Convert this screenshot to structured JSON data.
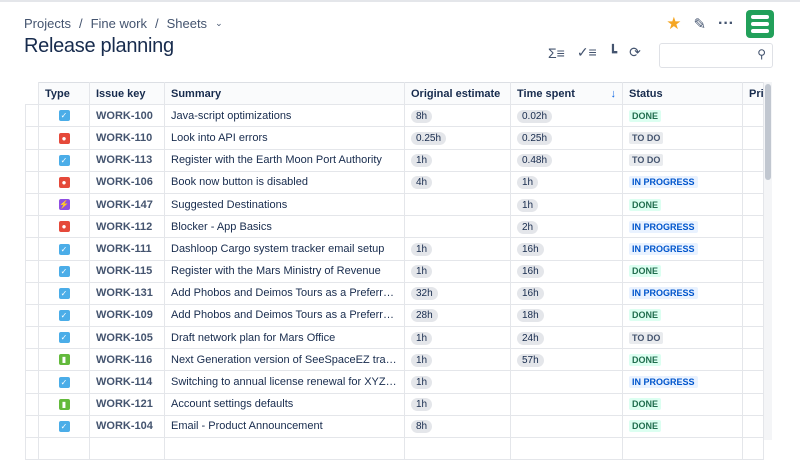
{
  "breadcrumb": [
    "Projects",
    "Fine work",
    "Sheets"
  ],
  "page_title": "Release planning",
  "colors": {
    "done_bg": "#dcfff1",
    "done_fg": "#216e4e",
    "todo_bg": "#e9ebee",
    "todo_fg": "#44546f",
    "progress_bg": "#e9f2ff",
    "progress_fg": "#0055cc",
    "task": "#4bade8",
    "bug": "#e5493a",
    "epic": "#904ee2",
    "story": "#63ba3c"
  },
  "search": {
    "placeholder": ""
  },
  "columns": [
    "Type",
    "Issue key",
    "Summary",
    "Original estimate",
    "Time spent",
    "Status",
    "Pri"
  ],
  "rows": [
    {
      "type": "task",
      "key": "WORK-100",
      "summary": "Java-script optimizations",
      "est": "8h",
      "spent": "0.02h",
      "status": "DONE"
    },
    {
      "type": "bug",
      "key": "WORK-110",
      "summary": "Look into API errors",
      "est": "0.25h",
      "spent": "0.25h",
      "status": "TO DO"
    },
    {
      "type": "task",
      "key": "WORK-113",
      "summary": "Register with the Earth Moon Port Authority",
      "est": "1h",
      "spent": "0.48h",
      "status": "TO DO"
    },
    {
      "type": "bug",
      "key": "WORK-106",
      "summary": "Book now button is disabled",
      "est": "4h",
      "spent": "1h",
      "status": "IN PROGRESS"
    },
    {
      "type": "epic",
      "key": "WORK-147",
      "summary": "Suggested Destinations",
      "est": "",
      "spent": "1h",
      "status": "DONE"
    },
    {
      "type": "bug",
      "key": "WORK-112",
      "summary": "Blocker - App Basics",
      "est": "",
      "spent": "2h",
      "status": "IN PROGRESS"
    },
    {
      "type": "task",
      "key": "WORK-111",
      "summary": "Dashloop Cargo system tracker email setup",
      "est": "1h",
      "spent": "16h",
      "status": "IN PROGRESS"
    },
    {
      "type": "task",
      "key": "WORK-115",
      "summary": "Register with the Mars Ministry of Revenue",
      "est": "1h",
      "spent": "16h",
      "status": "DONE"
    },
    {
      "type": "task",
      "key": "WORK-131",
      "summary": "Add Phobos and Deimos Tours as a Preferred Partner",
      "est": "32h",
      "spent": "16h",
      "status": "IN PROGRESS"
    },
    {
      "type": "task",
      "key": "WORK-109",
      "summary": "Add Phobos and Deimos Tours as a Preferred Vendor",
      "est": "28h",
      "spent": "18h",
      "status": "DONE"
    },
    {
      "type": "task",
      "key": "WORK-105",
      "summary": "Draft network plan for Mars Office",
      "est": "1h",
      "spent": "24h",
      "status": "TO DO"
    },
    {
      "type": "story",
      "key": "WORK-116",
      "summary": "Next Generation version of SeeSpaceEZ travel app",
      "est": "1h",
      "spent": "57h",
      "status": "DONE"
    },
    {
      "type": "task",
      "key": "WORK-114",
      "summary": "Switching to annual license renewal for XYZ group",
      "est": "1h",
      "spent": "",
      "status": "IN PROGRESS"
    },
    {
      "type": "story",
      "key": "WORK-121",
      "summary": "Account settings defaults",
      "est": "1h",
      "spent": "",
      "status": "DONE"
    },
    {
      "type": "task",
      "key": "WORK-104",
      "summary": "Email - Product Announcement",
      "est": "8h",
      "spent": "",
      "status": "DONE"
    }
  ]
}
